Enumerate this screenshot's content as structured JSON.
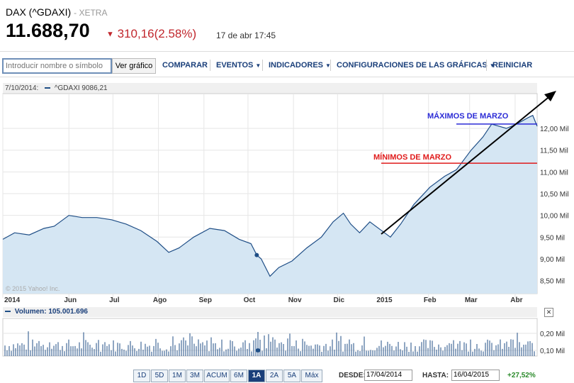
{
  "header": {
    "title": "DAX (^GDAXI)",
    "exchange": "- XETRA",
    "price": "11.688,70",
    "change": "310,16",
    "change_pct": "(2.58%)",
    "time": "17 de abr 17:45"
  },
  "toolbar": {
    "search_placeholder": "Introducir nombre o símbolo",
    "view_button": "Ver gráfico",
    "compare": "COMPARAR",
    "events": "EVENTOS",
    "indicators": "INDICADORES",
    "settings": "CONFIGURACIONES DE LAS GRÁFICAS",
    "reset": "REINICIAR"
  },
  "chart_header": {
    "date": "7/10/2014:",
    "series_value": "^GDAXI 9086,21"
  },
  "volume_header": "Volumen: 105.001.696",
  "watermark": "© 2015 Yahoo! Inc.",
  "annotations": {
    "max": "MÁXIMOS DE MARZO",
    "min": "MÍNIMOS DE MARZO"
  },
  "footer": {
    "ranges": [
      "1D",
      "5D",
      "1M",
      "3M",
      "ACUM",
      "6M",
      "1A",
      "2A",
      "5A",
      "Máx"
    ],
    "active_range": "1A",
    "from_label": "DESDE:",
    "from_value": "17/04/2014",
    "to_label": "HASTA:",
    "to_value": "16/04/2015",
    "performance": "+27,52%"
  },
  "colors": {
    "line": "#1f4e86",
    "fill": "#d5e6f3",
    "max_line": "#2b2bd6",
    "min_line": "#e01b1b",
    "down": "#c1272d"
  },
  "chart_data": {
    "type": "area",
    "ylim": [
      8200,
      12800
    ],
    "y_ticks": [
      8500,
      9000,
      9500,
      10000,
      10500,
      11000,
      11500,
      12000
    ],
    "y_tick_labels": [
      "8,50 Mil",
      "9,00 Mil",
      "9,50 Mil",
      "10,00 Mil",
      "10,50 Mil",
      "11,00 Mil",
      "11,50 Mil",
      "12,00 Mil"
    ],
    "x_tick_labels": [
      "2014",
      "Jun",
      "Jul",
      "Ago",
      "Sep",
      "Oct",
      "Nov",
      "Dic",
      "2015",
      "Feb",
      "Mar",
      "Abr"
    ],
    "x_tick_dates": [
      "2014-04-17",
      "2014-06-01",
      "2014-07-01",
      "2014-08-01",
      "2014-09-01",
      "2014-10-01",
      "2014-11-01",
      "2014-12-01",
      "2015-01-01",
      "2015-02-01",
      "2015-03-01",
      "2015-04-01"
    ],
    "series": [
      {
        "dates": [
          "2014-04-17",
          "2014-04-25",
          "2014-05-05",
          "2014-05-15",
          "2014-05-22",
          "2014-06-01",
          "2014-06-10",
          "2014-06-20",
          "2014-06-30",
          "2014-07-10",
          "2014-07-20",
          "2014-07-31",
          "2014-08-08",
          "2014-08-15",
          "2014-08-25",
          "2014-09-05",
          "2014-09-15",
          "2014-09-25",
          "2014-10-03",
          "2014-10-07",
          "2014-10-10",
          "2014-10-16",
          "2014-10-22",
          "2014-10-31",
          "2014-11-10",
          "2014-11-20",
          "2014-11-28",
          "2014-12-05",
          "2014-12-10",
          "2014-12-16",
          "2014-12-23",
          "2015-01-06",
          "2015-01-13",
          "2015-01-22",
          "2015-02-02",
          "2015-02-12",
          "2015-02-20",
          "2015-03-02",
          "2015-03-10",
          "2015-03-16",
          "2015-03-26",
          "2015-04-02",
          "2015-04-10",
          "2015-04-13",
          "2015-04-16"
        ],
        "values": [
          9450,
          9600,
          9550,
          9700,
          9750,
          10000,
          9950,
          9950,
          9900,
          9800,
          9650,
          9400,
          9150,
          9250,
          9500,
          9700,
          9650,
          9450,
          9350,
          9086,
          9000,
          8600,
          8800,
          8950,
          9250,
          9500,
          9850,
          10050,
          9800,
          9600,
          9850,
          9500,
          9800,
          10250,
          10650,
          10900,
          11050,
          11500,
          11800,
          12100,
          12000,
          12100,
          12250,
          12300,
          12050
        ]
      }
    ],
    "volume_ticks": [
      "0,10 Mil",
      "0,20 Mil"
    ],
    "trend_annotations": [
      {
        "label": "MÁXIMOS DE MARZO",
        "level": 12100
      },
      {
        "label": "MÍNIMOS DE MARZO",
        "level": 11200
      }
    ]
  }
}
